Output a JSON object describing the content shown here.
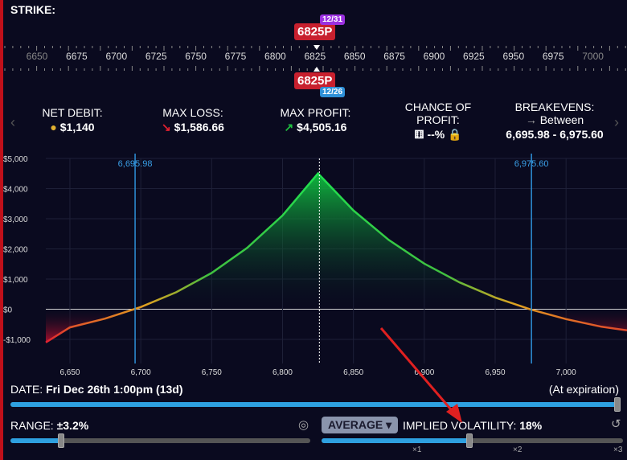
{
  "strike": {
    "label": "STRIKE:",
    "ticks": [
      "6650",
      "6675",
      "6700",
      "6725",
      "6750",
      "6775",
      "6800",
      "6825",
      "6850",
      "6875",
      "6900",
      "6925",
      "6950",
      "6975",
      "7000"
    ],
    "top_leg": {
      "strike": "6825P",
      "expiry": "12/31",
      "expiry_color": "#9b30e0"
    },
    "bottom_leg": {
      "strike": "6825P",
      "expiry": "12/26",
      "expiry_color": "#2e90d8"
    }
  },
  "stats": {
    "net_debit": {
      "label": "NET DEBIT:",
      "value": "$1,140"
    },
    "max_loss": {
      "label": "MAX LOSS:",
      "value": "$1,586.66"
    },
    "max_profit": {
      "label": "MAX PROFIT:",
      "value": "$4,505.16"
    },
    "chance": {
      "label1": "CHANCE OF",
      "label2": "PROFIT:",
      "value": "--%"
    },
    "breakevens": {
      "label": "BREAKEVENS:",
      "between": "Between",
      "value": "6,695.98 - 6,975.60"
    }
  },
  "chart_data": {
    "type": "area",
    "xlim": [
      6633,
      7043
    ],
    "ylim": [
      -1000,
      5000
    ],
    "yticks": [
      5000,
      4000,
      3000,
      2000,
      1000,
      0,
      -1000
    ],
    "ytick_labels": [
      "$5,000",
      "$4,000",
      "$3,000",
      "$2,000",
      "$1,000",
      "$0",
      "-$1,000"
    ],
    "xticks": [
      6650,
      6700,
      6750,
      6800,
      6850,
      6900,
      6950,
      7000
    ],
    "xtick_labels": [
      "6,650",
      "6,700",
      "6,750",
      "6,800",
      "6,850",
      "6,900",
      "6,950",
      "7,000"
    ],
    "x": [
      6633,
      6650,
      6675,
      6700,
      6725,
      6750,
      6775,
      6800,
      6825,
      6850,
      6875,
      6900,
      6925,
      6950,
      6975,
      7000,
      7025,
      7043
    ],
    "y": [
      -1100,
      -602,
      -309,
      71,
      563,
      1203,
      2032,
      3110,
      4505,
      3276,
      2296,
      1513,
      888,
      389,
      -9,
      -327,
      -581,
      -700
    ],
    "breakevens": [
      6695.98,
      6975.6
    ],
    "breakeven_labels": [
      "6,695.98",
      "6,975.60"
    ],
    "current_price": 6826
  },
  "date": {
    "label": "DATE:",
    "value": "Fri Dec 26th 1:00pm (13d)",
    "note": "(At expiration)",
    "progress": 1.0
  },
  "range": {
    "label": "RANGE:",
    "value": "±3.2%",
    "fraction": 0.17
  },
  "iv": {
    "mode": "AVERAGE",
    "label": "IMPLIED VOLATILITY:",
    "value": "18%",
    "fraction": 0.49,
    "marks": [
      "×1",
      "×2",
      "×3"
    ]
  }
}
